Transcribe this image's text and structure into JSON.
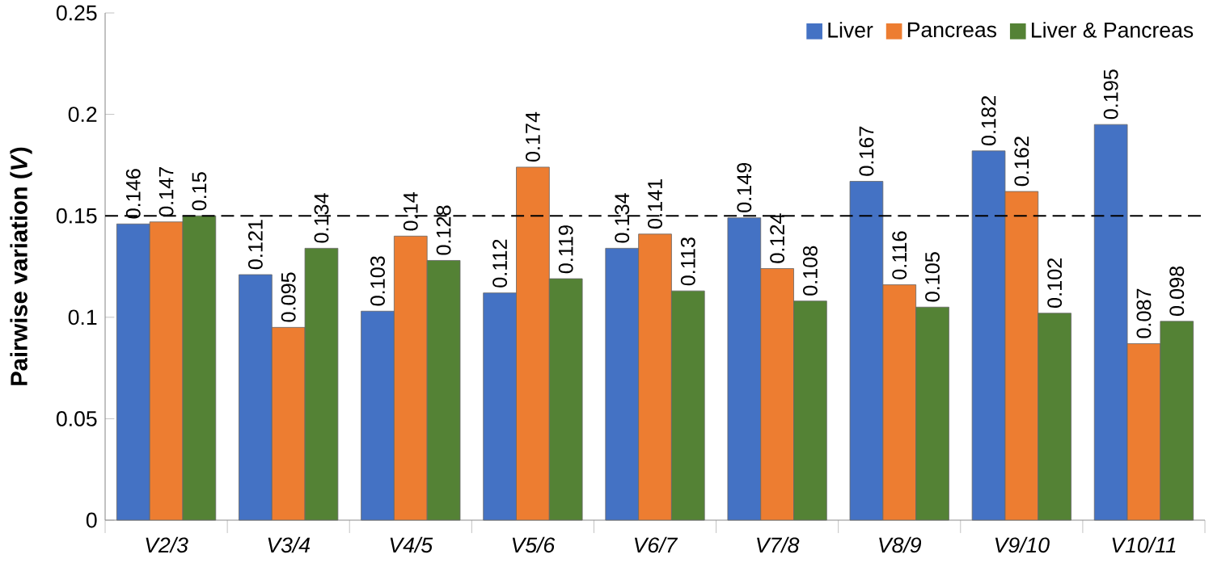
{
  "chart_data": {
    "type": "bar",
    "ylabel": "Pairwise variation (*V*)",
    "categories": [
      "V2/3",
      "V3/4",
      "V4/5",
      "V5/6",
      "V6/7",
      "V7/8",
      "V8/9",
      "V9/10",
      "V10/11"
    ],
    "series": [
      {
        "name": "Liver",
        "color": "#4472c4",
        "values": [
          0.146,
          0.121,
          0.103,
          0.112,
          0.134,
          0.149,
          0.167,
          0.182,
          0.195
        ]
      },
      {
        "name": "Pancreas",
        "color": "#ed7d31",
        "values": [
          0.147,
          0.095,
          0.14,
          0.174,
          0.141,
          0.124,
          0.116,
          0.162,
          0.087
        ]
      },
      {
        "name": "Liver & Pancreas",
        "color": "#548235",
        "values": [
          0.15,
          0.134,
          0.128,
          0.119,
          0.113,
          0.108,
          0.105,
          0.102,
          0.098
        ]
      }
    ],
    "ylim": [
      0,
      0.25
    ],
    "yticks": [
      0,
      0.05,
      0.1,
      0.15,
      0.2,
      0.25
    ],
    "ref_lines": [
      {
        "axis": "y",
        "value": 0.15,
        "line_style": "dashed",
        "color": "#000000"
      }
    ],
    "data_labels": true,
    "legend": "top right",
    "grid": false
  }
}
